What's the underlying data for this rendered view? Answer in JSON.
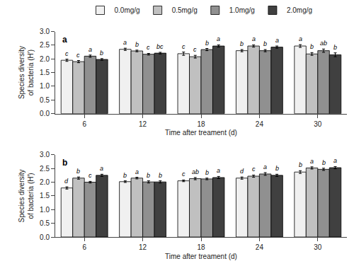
{
  "chart_data": [
    {
      "type": "bar",
      "title": "a",
      "categories": [
        "6",
        "12",
        "18",
        "24",
        "30"
      ],
      "xlabel": "Time after treament (d)",
      "ylabel": "Species diversity\nof bacteria (H′)",
      "ylim": [
        0.0,
        3.0
      ],
      "yticks": [
        {
          "value": 0,
          "label": "0.0"
        },
        0.5,
        {
          "value": 1,
          "label": "1.0"
        },
        1.5,
        {
          "value": 2,
          "label": "2.0"
        },
        2.5,
        {
          "value": 3,
          "label": "3.0"
        }
      ],
      "grid": false,
      "legend": "top",
      "series": [
        {
          "name": "0.0mg/g",
          "color": "#f0f0f0",
          "values": [
            1.95,
            2.35,
            2.19,
            2.3,
            2.47
          ],
          "errors": [
            0.04,
            0.04,
            0.06,
            0.04,
            0.05
          ],
          "annotations": [
            "c",
            "a",
            "c",
            "b",
            "a"
          ]
        },
        {
          "name": "0.5mg/g",
          "color": "#c0c0c0",
          "values": [
            1.9,
            2.29,
            2.08,
            2.47,
            2.18
          ],
          "errors": [
            0.04,
            0.03,
            0.05,
            0.04,
            0.05
          ],
          "annotations": [
            "c",
            "b",
            "c",
            "a",
            "b"
          ]
        },
        {
          "name": "1.0mg/g",
          "color": "#909090",
          "values": [
            2.1,
            2.17,
            2.34,
            2.3,
            2.3
          ],
          "errors": [
            0.04,
            0.03,
            0.04,
            0.04,
            0.06
          ],
          "annotations": [
            "a",
            "c",
            "b",
            "b",
            "ab"
          ]
        },
        {
          "name": "2.0mg/g",
          "color": "#404040",
          "values": [
            1.98,
            2.21,
            2.47,
            2.43,
            2.15
          ],
          "errors": [
            0.03,
            0.03,
            0.04,
            0.04,
            0.07
          ],
          "annotations": [
            "b",
            "bc",
            "a",
            "a",
            "b"
          ]
        }
      ]
    },
    {
      "type": "bar",
      "title": "b",
      "categories": [
        "6",
        "12",
        "18",
        "24",
        "30"
      ],
      "xlabel": "Time after treament (d)",
      "ylabel": "Species diversity\nof bacteria (H′)",
      "ylim": [
        0.0,
        3.0
      ],
      "yticks": [
        {
          "value": 0,
          "label": "0.0"
        },
        0.5,
        {
          "value": 1,
          "label": "1.0"
        },
        1.5,
        {
          "value": 2,
          "label": "2.0"
        },
        2.5,
        {
          "value": 3,
          "label": "3.0"
        }
      ],
      "grid": false,
      "series": [
        {
          "name": "0.0mg/g",
          "color": "#f0f0f0",
          "values": [
            1.79,
            2.02,
            2.05,
            2.15,
            2.37
          ],
          "errors": [
            0.04,
            0.03,
            0.03,
            0.04,
            0.05
          ],
          "annotations": [
            "d",
            "b",
            "c",
            "d",
            "b"
          ]
        },
        {
          "name": "0.5mg/g",
          "color": "#c0c0c0",
          "values": [
            2.15,
            2.15,
            2.13,
            2.22,
            2.52
          ],
          "errors": [
            0.04,
            0.03,
            0.04,
            0.04,
            0.04
          ],
          "annotations": [
            "b",
            "a",
            "ab",
            "c",
            "a"
          ]
        },
        {
          "name": "1.0mg/g",
          "color": "#909090",
          "values": [
            2.0,
            2.01,
            2.12,
            2.3,
            2.47
          ],
          "errors": [
            0.03,
            0.04,
            0.03,
            0.05,
            0.04
          ],
          "annotations": [
            "c",
            "b",
            "b",
            "a",
            "b"
          ]
        },
        {
          "name": "2.0mg/g",
          "color": "#404040",
          "values": [
            2.25,
            2.01,
            2.17,
            2.25,
            2.53
          ],
          "errors": [
            0.04,
            0.04,
            0.04,
            0.04,
            0.04
          ],
          "annotations": [
            "a",
            "b",
            "a",
            "b",
            "a"
          ]
        }
      ]
    }
  ]
}
